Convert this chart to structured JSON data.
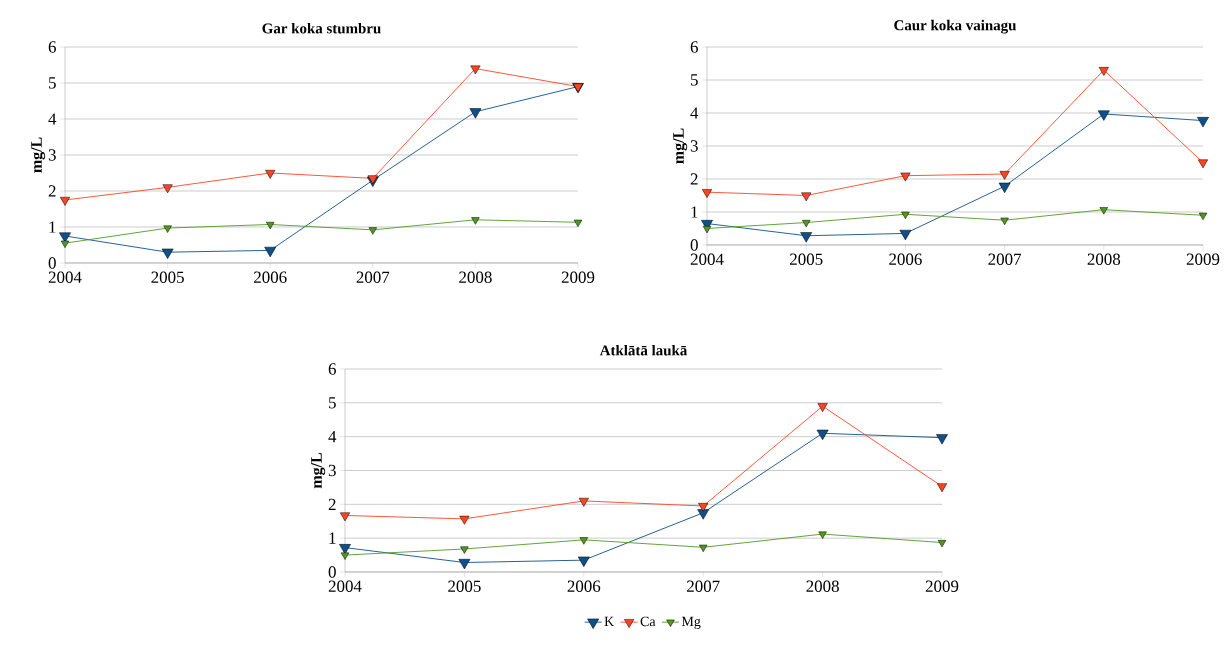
{
  "chart_data": [
    {
      "type": "line",
      "title": "Gar koka stumbru",
      "ylabel": "mg/L",
      "categories": [
        "2004",
        "2005",
        "2006",
        "2007",
        "2008",
        "2009"
      ],
      "ylim": [
        0,
        6
      ],
      "yticks": [
        0,
        1,
        2,
        3,
        4,
        5,
        6
      ],
      "grid": "y",
      "marker": "triangle",
      "legend": false,
      "series": [
        {
          "color": "#0f4f8a",
          "values": [
            0.75,
            0.3,
            0.35,
            2.3,
            4.2,
            4.9
          ]
        },
        {
          "color": "#ff4422",
          "values": [
            1.75,
            2.1,
            2.5,
            2.35,
            5.4,
            4.9
          ]
        },
        {
          "color": "#4f9a1f",
          "values": [
            0.55,
            0.97,
            1.07,
            0.92,
            1.2,
            1.13
          ]
        }
      ]
    },
    {
      "type": "line",
      "title": "Caur koka vainagu",
      "ylabel": "mg/L",
      "categories": [
        "2004",
        "2005",
        "2006",
        "2007",
        "2008",
        "2009"
      ],
      "ylim": [
        0,
        6
      ],
      "yticks": [
        0,
        1,
        2,
        3,
        4,
        5,
        6
      ],
      "grid": "y",
      "marker": "triangle",
      "legend": false,
      "series": [
        {
          "color": "#0f4f8a",
          "values": [
            0.65,
            0.28,
            0.35,
            1.78,
            3.97,
            3.77
          ]
        },
        {
          "color": "#ff4422",
          "values": [
            1.6,
            1.5,
            2.1,
            2.15,
            5.3,
            2.5
          ]
        },
        {
          "color": "#4f9a1f",
          "values": [
            0.5,
            0.68,
            0.93,
            0.75,
            1.07,
            0.9
          ]
        }
      ]
    },
    {
      "type": "line",
      "title": "Atklātā laukā",
      "ylabel": "mg/L",
      "categories": [
        "2004",
        "2005",
        "2006",
        "2007",
        "2008",
        "2009"
      ],
      "ylim": [
        0,
        6
      ],
      "yticks": [
        0,
        1,
        2,
        3,
        4,
        5,
        6
      ],
      "grid": "y",
      "marker": "triangle",
      "legend": "bottom",
      "series": [
        {
          "name": "K",
          "color": "#0f4f8a",
          "values": [
            0.72,
            0.28,
            0.35,
            1.75,
            4.1,
            3.97
          ]
        },
        {
          "name": "Ca",
          "color": "#ff4422",
          "values": [
            1.67,
            1.57,
            2.1,
            1.95,
            4.9,
            2.53
          ]
        },
        {
          "name": "Mg",
          "color": "#4f9a1f",
          "values": [
            0.5,
            0.68,
            0.95,
            0.73,
            1.12,
            0.87
          ]
        }
      ]
    }
  ]
}
